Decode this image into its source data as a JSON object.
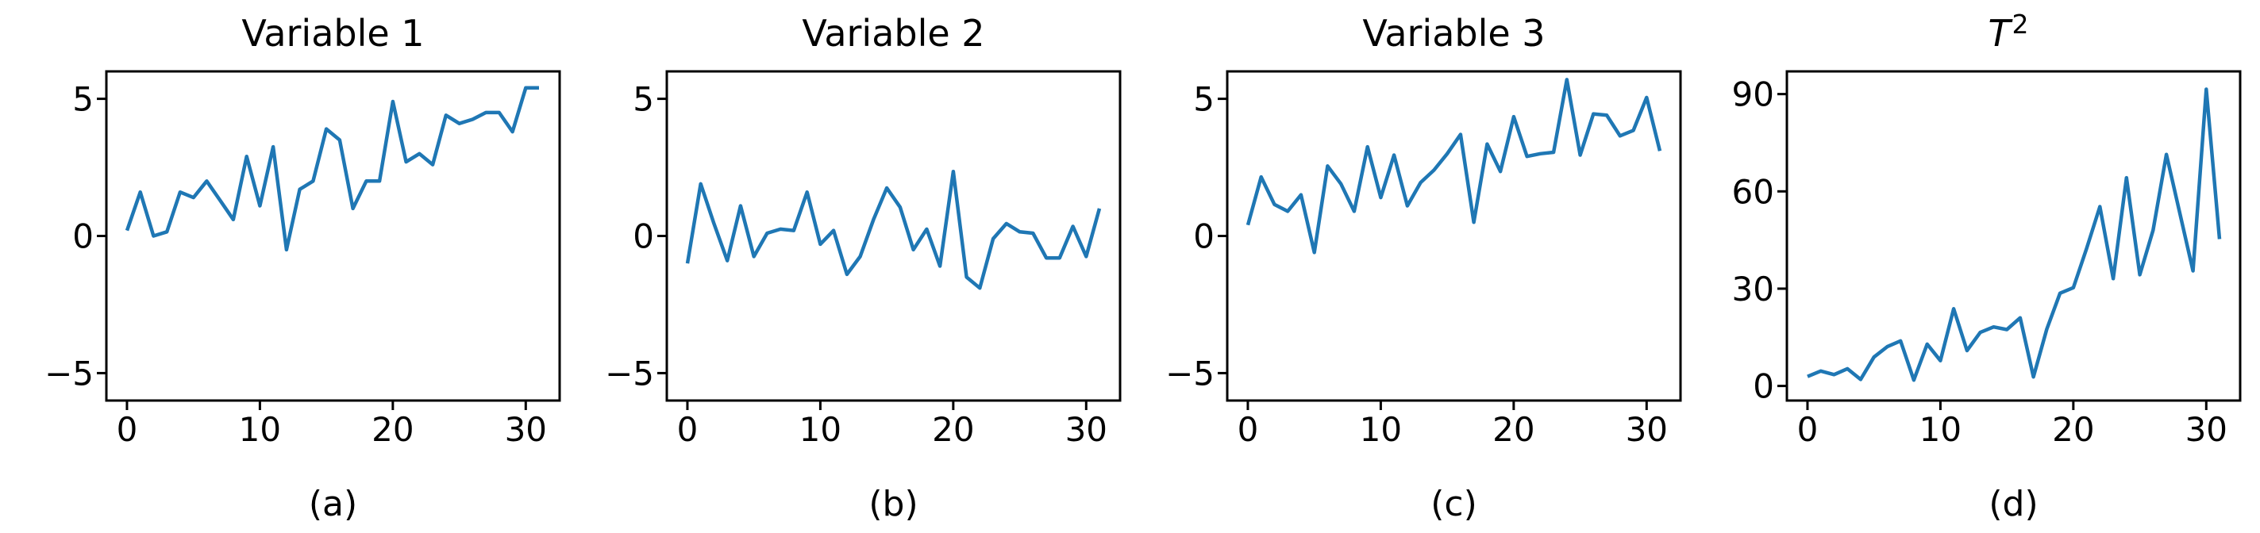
{
  "figure": {
    "background": "#ffffff",
    "line_color": "#1f77b4",
    "axis_color": "#000000"
  },
  "chart_data": [
    {
      "type": "line",
      "title": "Variable 1",
      "title_sup": "",
      "sublabel": "(a)",
      "x_ticks": [
        0,
        10,
        20,
        30
      ],
      "y_ticks": [
        5,
        0,
        -5
      ],
      "y_tick_labels": [
        "5",
        "0",
        "−5"
      ],
      "x_tick_labels": [
        "0",
        "10",
        "20",
        "30"
      ],
      "xlim": [
        -1.55,
        32.55
      ],
      "ylim": [
        -6,
        6
      ],
      "x_start": 0,
      "x_step": 1,
      "grid": false,
      "values": [
        0.2,
        1.6,
        0.0,
        0.15,
        1.6,
        1.4,
        2.0,
        1.3,
        0.6,
        2.9,
        1.1,
        3.25,
        -0.5,
        1.7,
        2.0,
        3.9,
        3.5,
        1.0,
        2.0,
        2.0,
        4.9,
        2.7,
        3.0,
        2.6,
        4.4,
        4.1,
        4.25,
        4.5,
        4.5,
        3.8,
        5.4,
        5.4
      ]
    },
    {
      "type": "line",
      "title": "Variable 2",
      "title_sup": "",
      "sublabel": "(b)",
      "x_ticks": [
        0,
        10,
        20,
        30
      ],
      "y_ticks": [
        5,
        0,
        -5
      ],
      "y_tick_labels": [
        "5",
        "0",
        "−5"
      ],
      "x_tick_labels": [
        "0",
        "10",
        "20",
        "30"
      ],
      "xlim": [
        -1.55,
        32.55
      ],
      "ylim": [
        -6,
        6
      ],
      "x_start": 0,
      "x_step": 1,
      "grid": false,
      "values": [
        -1.0,
        1.9,
        0.45,
        -0.9,
        1.1,
        -0.75,
        0.1,
        0.25,
        0.2,
        1.6,
        -0.3,
        0.2,
        -1.4,
        -0.75,
        0.6,
        1.75,
        1.05,
        -0.5,
        0.25,
        -1.1,
        2.35,
        -1.5,
        -1.9,
        -0.1,
        0.45,
        0.15,
        0.1,
        -0.8,
        -0.8,
        0.35,
        -0.75,
        1.0
      ]
    },
    {
      "type": "line",
      "title": "Variable 3",
      "title_sup": "",
      "sublabel": "(c)",
      "x_ticks": [
        0,
        10,
        20,
        30
      ],
      "y_ticks": [
        5,
        0,
        -5
      ],
      "y_tick_labels": [
        "5",
        "0",
        "−5"
      ],
      "x_tick_labels": [
        "0",
        "10",
        "20",
        "30"
      ],
      "xlim": [
        -1.55,
        32.55
      ],
      "ylim": [
        -6,
        6
      ],
      "x_start": 0,
      "x_step": 1,
      "grid": false,
      "values": [
        0.4,
        2.15,
        1.15,
        0.9,
        1.5,
        -0.6,
        2.55,
        1.9,
        0.9,
        3.25,
        1.4,
        2.95,
        1.1,
        1.95,
        2.4,
        3.0,
        3.7,
        0.5,
        3.35,
        2.35,
        4.35,
        2.9,
        3.0,
        3.05,
        5.7,
        2.95,
        4.45,
        4.4,
        3.65,
        3.85,
        5.05,
        3.1
      ]
    },
    {
      "type": "line",
      "title": "T",
      "title_sup": "2",
      "sublabel": "(d)",
      "x_ticks": [
        0,
        10,
        20,
        30
      ],
      "y_ticks": [
        90,
        60,
        30,
        0
      ],
      "y_tick_labels": [
        "90",
        "60",
        "30",
        "0"
      ],
      "x_tick_labels": [
        "0",
        "10",
        "20",
        "30"
      ],
      "xlim": [
        -1.55,
        32.55
      ],
      "ylim": [
        -4.5,
        97
      ],
      "x_start": 0,
      "x_step": 1,
      "grid": false,
      "values": [
        2.9,
        4.6,
        3.5,
        5.3,
        2.0,
        8.9,
        12.1,
        13.9,
        1.8,
        12.9,
        7.8,
        23.8,
        10.9,
        16.5,
        18.2,
        17.4,
        21.0,
        2.8,
        17.5,
        28.6,
        30.3,
        42.4,
        55.3,
        33.1,
        64.2,
        34.3,
        48.0,
        71.4,
        53.5,
        35.5,
        91.5,
        45.3
      ]
    }
  ]
}
